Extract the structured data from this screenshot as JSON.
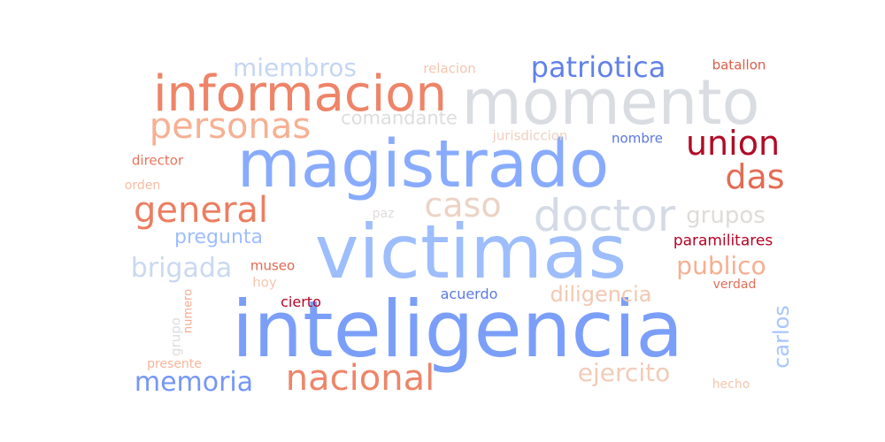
{
  "words": [
    {
      "text": "inteligencia",
      "color": "#7b9ff9"
    },
    {
      "text": "victimas",
      "color": "#9dbdfc"
    },
    {
      "text": "magistrado",
      "color": "#88abfd"
    },
    {
      "text": "momento",
      "color": "#d9dce1"
    },
    {
      "text": "informacion",
      "color": "#ee8468"
    },
    {
      "text": "doctor",
      "color": "#d4dbe6"
    },
    {
      "text": "personas",
      "color": "#f7b093"
    },
    {
      "text": "general",
      "color": "#ec7e60"
    },
    {
      "text": "nacional",
      "color": "#ee8568"
    },
    {
      "text": "patriotica",
      "color": "#6282ea"
    },
    {
      "text": "union",
      "color": "#b10b26"
    },
    {
      "text": "das",
      "color": "#e36c55"
    },
    {
      "text": "caso",
      "color": "#ecd3c5"
    },
    {
      "text": "memoria",
      "color": "#7597f6"
    },
    {
      "text": "ejercito",
      "color": "#f2cbb7"
    },
    {
      "text": "brigada",
      "color": "#cad8ef"
    },
    {
      "text": "miembros",
      "color": "#c5d6f2"
    },
    {
      "text": "publico",
      "color": "#f7af91"
    },
    {
      "text": "grupos",
      "color": "#dfdbd9"
    },
    {
      "text": "diligencia",
      "color": "#f3c8b2"
    },
    {
      "text": "pregunta",
      "color": "#9ebeff"
    },
    {
      "text": "carlos",
      "color": "#a7c5fe"
    },
    {
      "text": "comandante",
      "color": "#dcdddd"
    },
    {
      "text": "paramilitares",
      "color": "#b40426"
    },
    {
      "text": "batallon",
      "color": "#dc5d4a"
    },
    {
      "text": "relacion",
      "color": "#f4c6af"
    },
    {
      "text": "jurisdiccion",
      "color": "#efcfbf"
    },
    {
      "text": "nombre",
      "color": "#5977e3"
    },
    {
      "text": "director",
      "color": "#e7745b"
    },
    {
      "text": "orden",
      "color": "#f6bda2"
    },
    {
      "text": "paz",
      "color": "#dfdbd9"
    },
    {
      "text": "museo",
      "color": "#e16751"
    },
    {
      "text": "hoy",
      "color": "#f3c7b1"
    },
    {
      "text": "acuerdo",
      "color": "#5b7ae5"
    },
    {
      "text": "cierto",
      "color": "#b40426"
    },
    {
      "text": "verdad",
      "color": "#e46e56"
    },
    {
      "text": "numero",
      "color": "#f7ac8e"
    },
    {
      "text": "grupo",
      "color": "#dedcdb"
    },
    {
      "text": "presente",
      "color": "#f7b599"
    },
    {
      "text": "hecho",
      "color": "#f5c4ac"
    }
  ]
}
